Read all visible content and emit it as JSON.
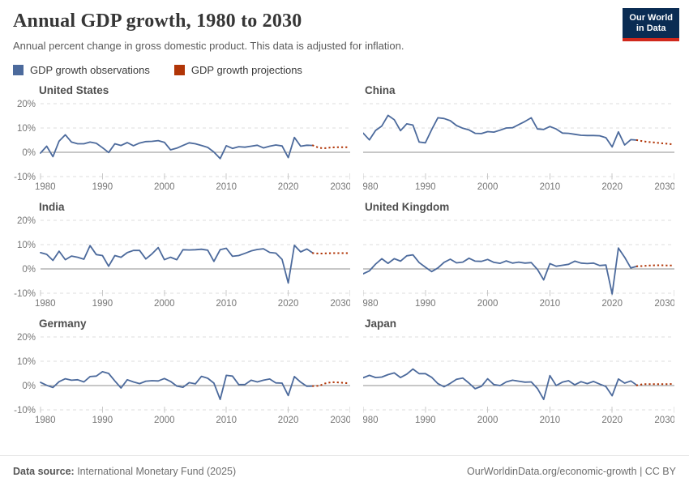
{
  "header": {
    "title": "Annual GDP growth, 1980 to 2030",
    "subtitle": "Annual percent change in gross domestic product. This data is adjusted for inflation.",
    "logo": {
      "line1": "Our World",
      "line2": "in Data",
      "bg_color": "#0A2C53",
      "accent_color": "#D0281C"
    }
  },
  "legend": {
    "observations_label": "GDP growth observations",
    "projections_label": "GDP growth projections",
    "observations_color": "#4C6A9C",
    "projections_color": "#B13507"
  },
  "axis": {
    "y_ticks": [
      20,
      10,
      0,
      -10
    ],
    "x_ticks": [
      1980,
      1990,
      2000,
      2010,
      2020,
      2030
    ],
    "ylim": [
      -10,
      20
    ],
    "xlim": [
      1980,
      2030
    ],
    "grid": "dashed horizontal lines, solid zero line"
  },
  "chart_data": [
    {
      "type": "line",
      "title": "United States",
      "ylabel": "%",
      "series": [
        {
          "name": "GDP growth observations",
          "x_start": 1980,
          "values": [
            -0.3,
            2.5,
            -1.8,
            4.6,
            7.2,
            4.2,
            3.5,
            3.5,
            4.2,
            3.7,
            1.9,
            -0.1,
            3.5,
            2.8,
            4.0,
            2.7,
            3.8,
            4.4,
            4.5,
            4.8,
            4.1,
            1.0,
            1.7,
            2.8,
            3.9,
            3.5,
            2.8,
            2.0,
            0.1,
            -2.6,
            2.7,
            1.6,
            2.3,
            2.1,
            2.5,
            2.9,
            1.8,
            2.5,
            3.0,
            2.6,
            -2.2,
            6.1,
            2.5,
            2.9,
            2.8
          ]
        },
        {
          "name": "GDP growth projections",
          "x_start": 2024,
          "values": [
            2.8,
            1.8,
            1.7,
            2.0,
            2.1,
            2.1,
            2.1
          ]
        }
      ]
    },
    {
      "type": "line",
      "title": "China",
      "ylabel": "%",
      "series": [
        {
          "name": "GDP growth observations",
          "x_start": 1980,
          "values": [
            7.9,
            5.1,
            9.0,
            10.8,
            15.2,
            13.4,
            8.9,
            11.7,
            11.2,
            4.2,
            3.9,
            9.3,
            14.2,
            13.9,
            13.0,
            11.0,
            9.9,
            9.2,
            7.8,
            7.7,
            8.5,
            8.3,
            9.1,
            10.0,
            10.1,
            11.4,
            12.7,
            14.2,
            9.6,
            9.4,
            10.6,
            9.6,
            7.9,
            7.8,
            7.4,
            7.0,
            6.9,
            6.9,
            6.8,
            6.0,
            2.2,
            8.4,
            3.0,
            5.2,
            5.0
          ]
        },
        {
          "name": "GDP growth projections",
          "x_start": 2024,
          "values": [
            5.0,
            4.5,
            4.2,
            4.0,
            3.7,
            3.5,
            3.2
          ]
        }
      ]
    },
    {
      "type": "line",
      "title": "India",
      "ylabel": "%",
      "series": [
        {
          "name": "GDP growth observations",
          "x_start": 1980,
          "values": [
            6.7,
            6.0,
            3.5,
            7.3,
            3.8,
            5.3,
            4.8,
            4.0,
            9.6,
            5.9,
            5.5,
            1.1,
            5.5,
            4.8,
            6.7,
            7.6,
            7.6,
            4.1,
            6.2,
            8.8,
            3.8,
            4.8,
            3.8,
            7.9,
            7.8,
            7.9,
            8.1,
            7.7,
            3.1,
            7.9,
            8.5,
            5.2,
            5.5,
            6.4,
            7.4,
            8.0,
            8.3,
            6.8,
            6.5,
            3.9,
            -5.8,
            9.7,
            7.0,
            8.2,
            6.5
          ]
        },
        {
          "name": "GDP growth projections",
          "x_start": 2024,
          "values": [
            6.5,
            6.3,
            6.4,
            6.5,
            6.5,
            6.5,
            6.5
          ]
        }
      ]
    },
    {
      "type": "line",
      "title": "United Kingdom",
      "ylabel": "%",
      "series": [
        {
          "name": "GDP growth observations",
          "x_start": 1980,
          "values": [
            -2.0,
            -0.8,
            2.0,
            4.2,
            2.3,
            4.2,
            3.2,
            5.4,
            5.8,
            2.6,
            0.7,
            -1.1,
            0.4,
            2.7,
            4.0,
            2.5,
            2.8,
            4.4,
            3.2,
            3.1,
            3.9,
            2.7,
            2.3,
            3.3,
            2.4,
            2.8,
            2.4,
            2.6,
            -0.2,
            -4.5,
            2.2,
            1.1,
            1.5,
            1.9,
            3.2,
            2.4,
            2.2,
            2.4,
            1.4,
            1.6,
            -10.3,
            8.6,
            4.8,
            0.4,
            1.1
          ]
        },
        {
          "name": "GDP growth projections",
          "x_start": 2024,
          "values": [
            1.1,
            1.2,
            1.4,
            1.5,
            1.5,
            1.4,
            1.4
          ]
        }
      ]
    },
    {
      "type": "line",
      "title": "Germany",
      "ylabel": "%",
      "series": [
        {
          "name": "GDP growth observations",
          "x_start": 1980,
          "values": [
            1.3,
            0.1,
            -0.8,
            1.6,
            2.8,
            2.2,
            2.4,
            1.5,
            3.7,
            3.9,
            5.7,
            5.0,
            1.9,
            -1.0,
            2.4,
            1.5,
            0.8,
            1.8,
            2.0,
            1.9,
            2.9,
            1.7,
            -0.2,
            -0.7,
            1.2,
            0.7,
            3.8,
            3.0,
            1.0,
            -5.7,
            4.2,
            3.9,
            0.4,
            0.4,
            2.2,
            1.5,
            2.2,
            2.7,
            1.1,
            1.0,
            -4.1,
            3.7,
            1.4,
            -0.3,
            -0.2
          ]
        },
        {
          "name": "GDP growth projections",
          "x_start": 2024,
          "values": [
            -0.2,
            -0.1,
            0.9,
            1.4,
            1.3,
            1.1,
            0.9
          ]
        }
      ]
    },
    {
      "type": "line",
      "title": "Japan",
      "ylabel": "%",
      "series": [
        {
          "name": "GDP growth observations",
          "x_start": 1980,
          "values": [
            3.2,
            4.2,
            3.3,
            3.5,
            4.5,
            5.2,
            3.3,
            4.7,
            6.8,
            4.9,
            4.9,
            3.4,
            0.8,
            -0.5,
            0.9,
            2.6,
            3.1,
            1.0,
            -1.3,
            -0.3,
            2.8,
            0.4,
            0.0,
            1.5,
            2.2,
            1.8,
            1.4,
            1.5,
            -1.2,
            -5.7,
            4.1,
            0.0,
            1.4,
            2.0,
            0.3,
            1.6,
            0.8,
            1.7,
            0.6,
            -0.4,
            -4.2,
            2.7,
            1.0,
            1.9,
            0.1
          ]
        },
        {
          "name": "GDP growth projections",
          "x_start": 2024,
          "values": [
            0.1,
            0.6,
            0.6,
            0.6,
            0.6,
            0.6,
            0.7
          ]
        }
      ]
    }
  ],
  "footer": {
    "source_label": "Data source:",
    "source_value": " International Monetary Fund (2025)",
    "link": "OurWorldinData.org/economic-growth | CC BY"
  }
}
